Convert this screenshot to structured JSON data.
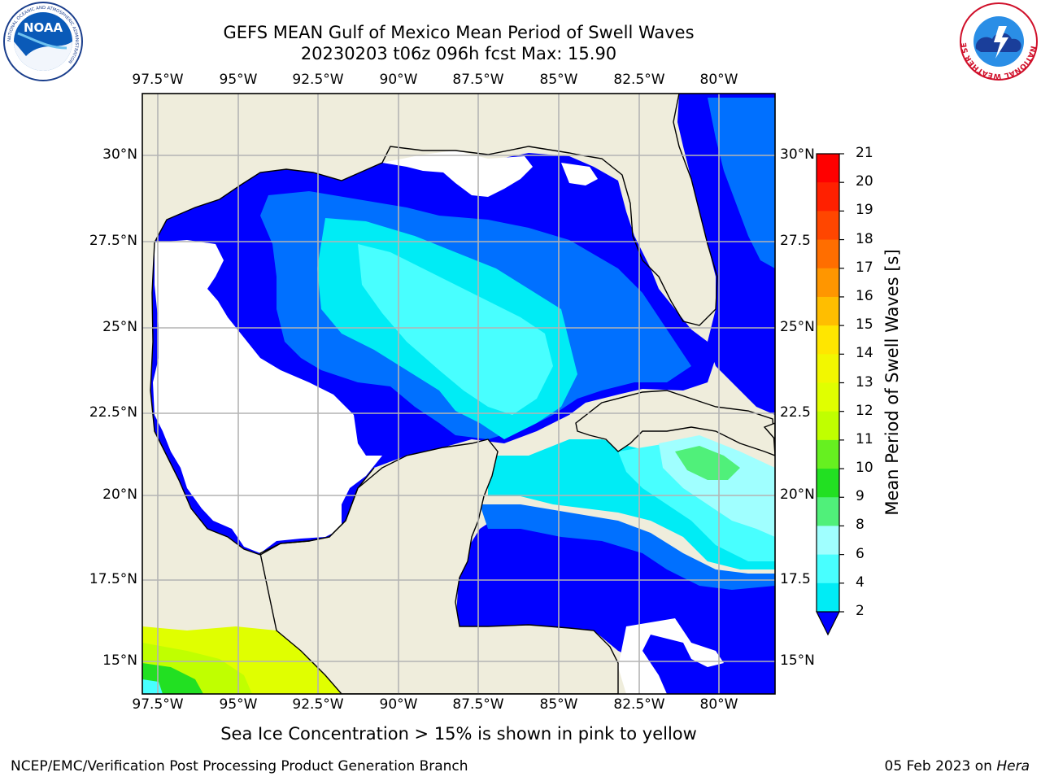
{
  "title_line1": "GEFS MEAN Gulf of Mexico Mean Period of Swell Waves",
  "title_line2": "20230203 t06z 096h fcst   Max: 15.90",
  "lon_labels": [
    "97.5°W",
    "95°W",
    "92.5°W",
    "90°W",
    "87.5°W",
    "85°W",
    "82.5°W",
    "80°W"
  ],
  "lat_labels": [
    "30°N",
    "27.5°N",
    "25°N",
    "22.5°N",
    "20°N",
    "17.5°N",
    "15°N"
  ],
  "lat_labels_right": [
    "30°N",
    "27.5",
    "25°N",
    "22.5",
    "20°N",
    "17.5",
    "15°N"
  ],
  "colorbar": {
    "label": "Mean Period of Swell Waves [s]",
    "ticks": [
      "21",
      "20",
      "19",
      "18",
      "17",
      "16",
      "15",
      "14",
      "13",
      "12",
      "11",
      "10",
      "9",
      "8",
      "6",
      "4",
      "2"
    ],
    "colors": [
      "#ff0000",
      "#ff2000",
      "#ff4600",
      "#ff6e00",
      "#ff9600",
      "#ffbe00",
      "#ffe600",
      "#f2f700",
      "#e0ff00",
      "#c0ff00",
      "#66f020",
      "#22e022",
      "#50f07a",
      "#a0ffff",
      "#48ffff",
      "#00ecf5",
      "#0070ff",
      "#0000ff"
    ]
  },
  "colors": {
    "land": "#efeddc",
    "ocean_masked": "#ffffff",
    "deep_blue": "#0000ff",
    "med_blue": "#0070ff",
    "cyan": "#00ecf5",
    "light_cyan": "#48ffff",
    "pale_cyan": "#a0ffff",
    "grid": "#b4b4b4"
  },
  "note": "Sea Ice Concentration > 15% is shown in pink to yellow",
  "footer_left": "NCEP/EMC/Verification Post Processing Product Generation Branch",
  "footer_date": "05 Feb 2023 on ",
  "footer_host": "Hera",
  "logo_left": "NOAA",
  "logo_left_ring": "NATIONAL OCEANIC AND ATMOSPHERIC ADMINISTRATION",
  "logo_right_ring": "NATIONAL WEATHER SERVICE",
  "logo_left_icon": "noaa-logo-icon",
  "logo_right_icon": "nws-logo-icon"
}
